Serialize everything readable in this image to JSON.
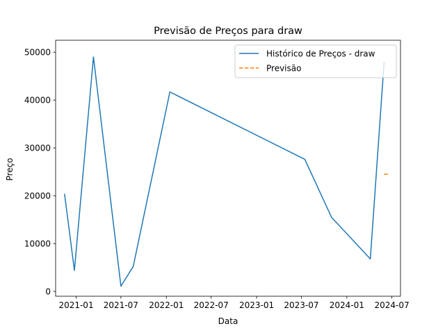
{
  "chart_data": {
    "type": "line",
    "title": "Previsão de Preços para draw",
    "xlabel": "Data",
    "ylabel": "Preço",
    "xlim": [
      "2020-10-10",
      "2024-08-05"
    ],
    "ylim": [
      -1000,
      52500
    ],
    "x_ticks": [
      "2021-01",
      "2021-07",
      "2022-01",
      "2022-07",
      "2023-01",
      "2023-07",
      "2024-01",
      "2024-07"
    ],
    "y_ticks": [
      0,
      10000,
      20000,
      30000,
      40000,
      50000
    ],
    "grid": false,
    "legend_position": "top-right",
    "series": [
      {
        "name": "Histórico de Preços - draw",
        "color": "#1f77b4",
        "style": "solid",
        "x": [
          "2020-11-15",
          "2020-12-25",
          "2021-03-12",
          "2021-07-01",
          "2021-08-20",
          "2022-01-15",
          "2023-07-15",
          "2023-10-31",
          "2024-04-05",
          "2024-05-20",
          "2024-05-31"
        ],
        "y": [
          20400,
          4400,
          49000,
          1100,
          5200,
          41700,
          27600,
          15500,
          6800,
          40000,
          48000
        ]
      },
      {
        "name": "Previsão",
        "color": "#ff7f0e",
        "style": "dashed",
        "x": [
          "2024-05-31",
          "2024-06-15"
        ],
        "y": [
          24500,
          24500
        ]
      }
    ]
  }
}
